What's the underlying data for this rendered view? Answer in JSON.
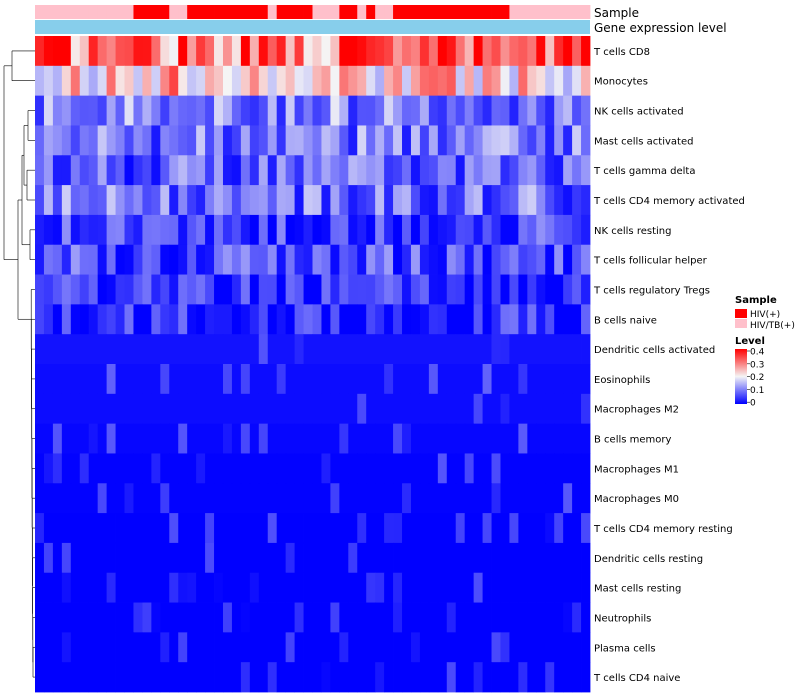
{
  "chart_data": {
    "type": "heatmap",
    "annotation_tracks": [
      "Sample",
      "Gene expression level"
    ],
    "sample_groups_hiv_positive": [
      0,
      0,
      0,
      0,
      0,
      0,
      0,
      0,
      0,
      0,
      0,
      1,
      1,
      1,
      1,
      0,
      0,
      1,
      1,
      1,
      1,
      1,
      1,
      1,
      1,
      1,
      0,
      1,
      1,
      1,
      1,
      0,
      0,
      0,
      1,
      1,
      0,
      1,
      0,
      0,
      1,
      1,
      1,
      1,
      1,
      1,
      1,
      1,
      1,
      1,
      1,
      1,
      1,
      0,
      0,
      0,
      0,
      0,
      0,
      0,
      0,
      0
    ],
    "rows": [
      "T cells CD8",
      "Monocytes",
      "NK cells activated",
      "Mast cells activated",
      "T cells gamma delta",
      "T cells CD4 memory activated",
      "NK cells resting",
      "T cells follicular helper",
      "T cells regulatory  Tregs",
      "B cells naive",
      "Dendritic cells activated",
      "Eosinophils",
      "Macrophages M2",
      "B cells memory",
      "Macrophages M1",
      "Macrophages M0",
      "T cells CD4 memory resting",
      "Dendritic cells resting",
      "Mast cells resting",
      "Neutrophils",
      "Plasma cells",
      "T cells CD4 naive"
    ],
    "row_means": [
      0.32,
      0.24,
      0.11,
      0.1,
      0.08,
      0.09,
      0.05,
      0.06,
      0.035,
      0.03,
      0.025,
      0.02,
      0.02,
      0.015,
      0.012,
      0.012,
      0.006,
      0.006,
      0.004,
      0.003,
      0.006,
      0.005
    ],
    "n_samples": 62,
    "legend": {
      "sample_title": "Sample",
      "sample_items": [
        {
          "label": "HIV(+)",
          "color": "#ff0000"
        },
        {
          "label": "HIV/TB(+)",
          "color": "#ffc0cb"
        }
      ],
      "level_title": "Level",
      "level_ticks": [
        "0.4",
        "0.3",
        "0.2",
        "0.1",
        "0"
      ],
      "level_range": [
        0,
        0.4
      ]
    },
    "colors": {
      "low": "#0000ff",
      "mid": "#f5f5f5",
      "high": "#ff0000",
      "expression_bar": "#87ceeb"
    }
  }
}
